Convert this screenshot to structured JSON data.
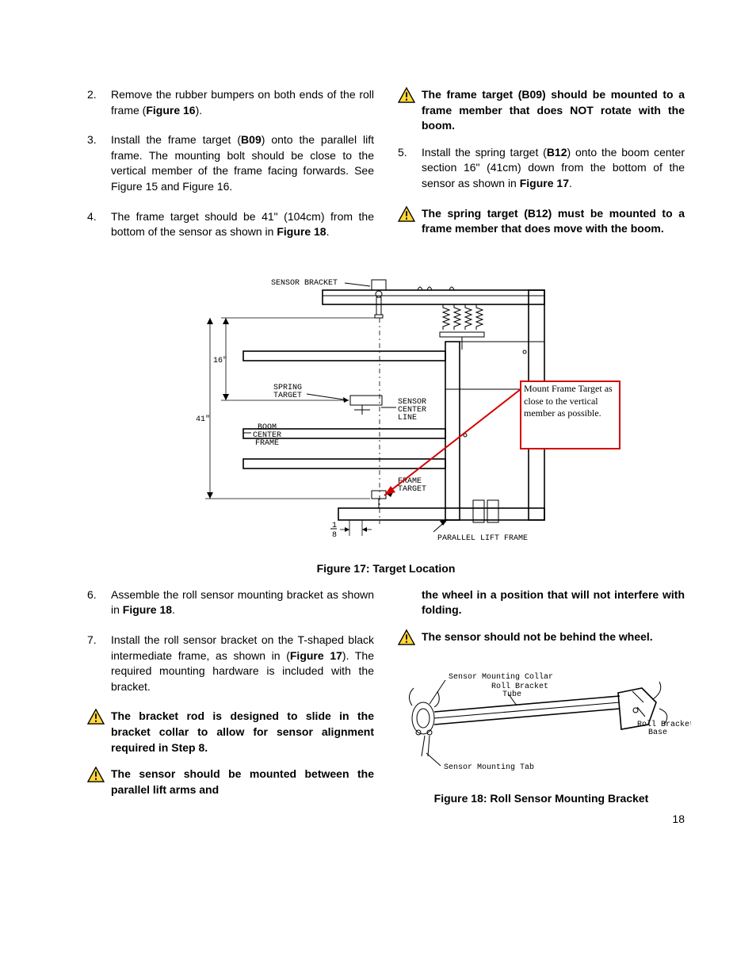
{
  "page_number": "18",
  "colors": {
    "warn_border": "#000000",
    "warn_fill": "#ffd83a",
    "warn_excl": "#000000",
    "red": "#d40000",
    "text": "#000000",
    "bg": "#ffffff"
  },
  "top_left_steps": [
    {
      "num": "2.",
      "parts": [
        {
          "t": "Remove the rubber bumpers on both ends of the roll frame ("
        },
        {
          "t": "Figure 16",
          "b": true
        },
        {
          "t": ")."
        }
      ]
    },
    {
      "num": "3.",
      "parts": [
        {
          "t": "Install the frame target ("
        },
        {
          "t": "B09",
          "b": true
        },
        {
          "t": ") onto the parallel lift frame.  The mounting bolt should be close to the vertical member of the frame facing forwards. See Figure 15 and Figure 16."
        }
      ]
    },
    {
      "num": "4.",
      "parts": [
        {
          "t": "The frame target should be 41\" (104cm) from the bottom of the sensor as shown in "
        },
        {
          "t": "Figure 18",
          "b": true
        },
        {
          "t": "."
        }
      ]
    }
  ],
  "top_right_items": [
    {
      "kind": "warn",
      "bold": true,
      "text": "The frame target (B09) should be mounted to a frame member that does NOT rotate with the boom."
    },
    {
      "kind": "step",
      "num": "5.",
      "parts": [
        {
          "t": "Install the spring target ("
        },
        {
          "t": "B12",
          "b": true
        },
        {
          "t": ") onto the boom center section 16\" (41cm) down from the bottom of the sensor as shown in "
        },
        {
          "t": "Figure 17",
          "b": true
        },
        {
          "t": "."
        }
      ]
    },
    {
      "kind": "warn",
      "bold": true,
      "text": "The spring target (B12) must be mounted to a frame member that does move with the boom."
    }
  ],
  "figure17": {
    "caption": "Figure 17: Target Location",
    "labels": {
      "sensor_bracket": "SENSOR BRACKET",
      "spring_target": "SPRING\nTARGET",
      "boom_center_frame": "BOOM\nCENTER\nFRAME",
      "sensor_center_line": "SENSOR\nCENTER\nLINE",
      "frame_target": "FRAME\nTARGET",
      "parallel_lift_frame": "PARALLEL LIFT FRAME",
      "one_eight": "1\n8",
      "sixteen": "16\"",
      "forty_one": "41\"",
      "callout": "Mount Frame Target as close to the vertical member as possible."
    },
    "callout_box": {
      "border_color": "#d40000",
      "text_color": "#000000",
      "bg": "#ffffff"
    }
  },
  "bottom_left_steps": [
    {
      "num": "6.",
      "parts": [
        {
          "t": "Assemble the roll sensor mounting bracket as shown in "
        },
        {
          "t": "Figure 18",
          "b": true
        },
        {
          "t": "."
        }
      ]
    },
    {
      "num": "7.",
      "parts": [
        {
          "t": "Install the roll sensor bracket on the T-shaped black intermediate frame, as shown in ("
        },
        {
          "t": "Figure 17",
          "b": true
        },
        {
          "t": ").  The required mounting hardware is included with the bracket."
        }
      ]
    }
  ],
  "bottom_left_warns": [
    {
      "bold": true,
      "text": "The bracket rod is designed to slide in the bracket collar to allow for sensor alignment required in Step 8."
    },
    {
      "bold": true,
      "text": "The sensor should be mounted between the parallel lift arms and"
    }
  ],
  "bottom_right_items": [
    {
      "kind": "cont",
      "bold": true,
      "text": "the wheel in a position that will not interfere with folding."
    },
    {
      "kind": "warn",
      "bold": true,
      "text": "The sensor should not be behind the wheel."
    }
  ],
  "figure18": {
    "caption": "Figure 18: Roll Sensor Mounting Bracket",
    "labels": {
      "sensor_mounting_collar": "Sensor Mounting Collar",
      "roll_bracket_tube": "Roll Bracket\nTube",
      "roll_bracket_base": "Roll Bracket\nBase",
      "sensor_mounting_tab": "Sensor Mounting Tab"
    }
  }
}
